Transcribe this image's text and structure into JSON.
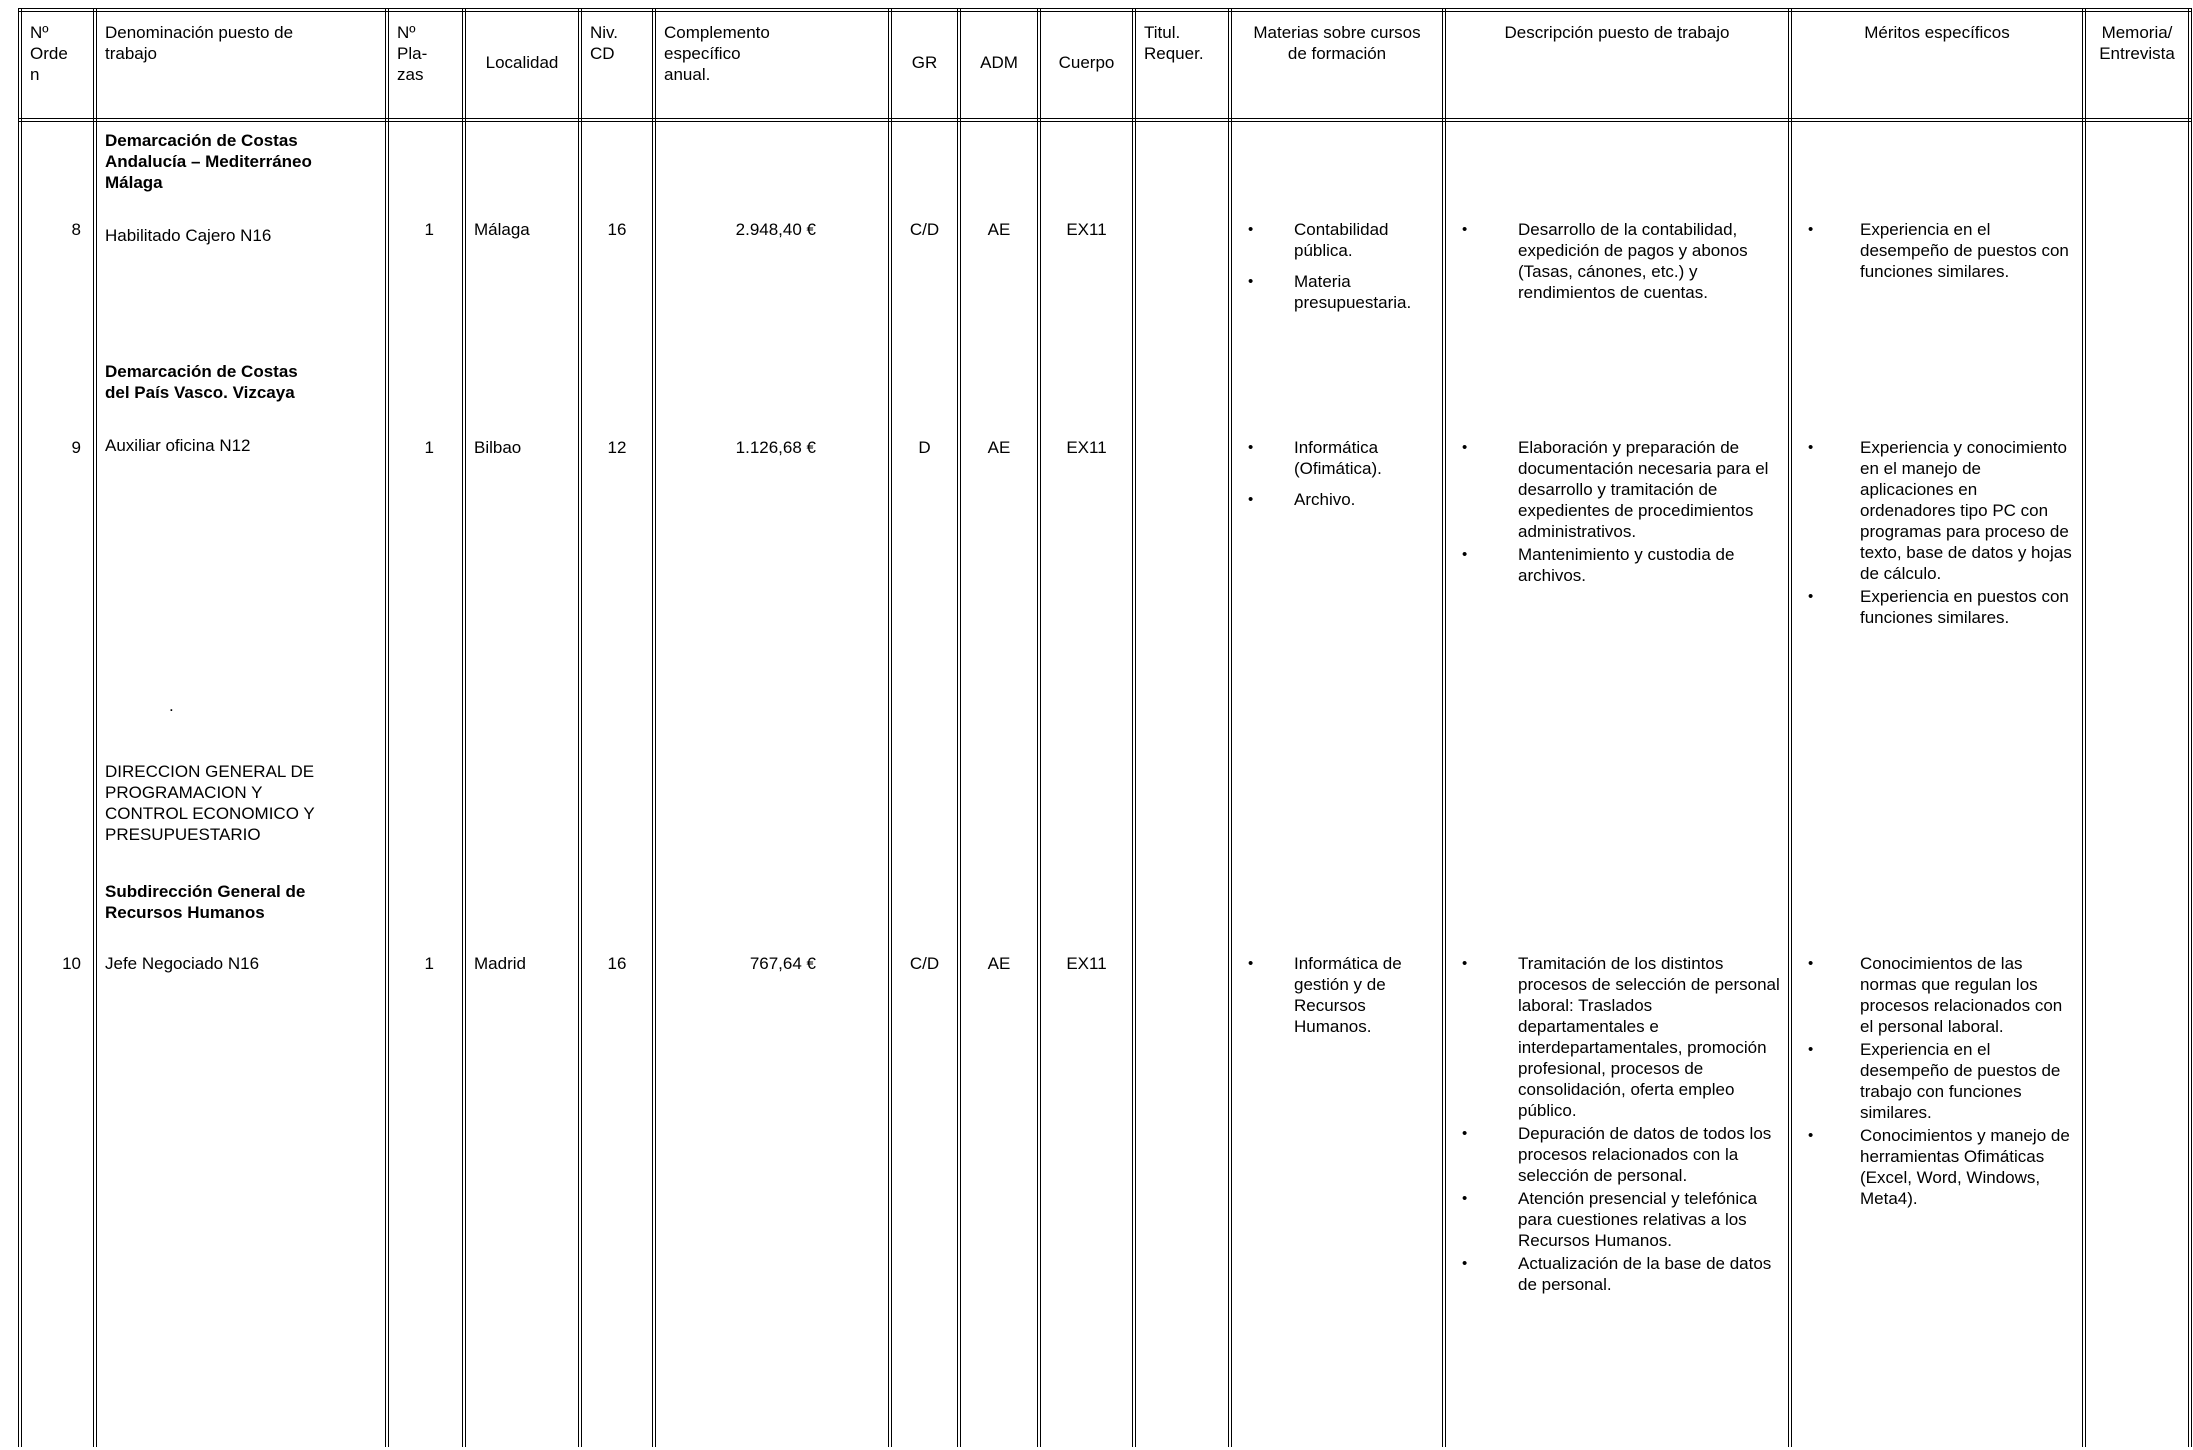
{
  "colors": {
    "ink": "#000000",
    "paper": "#ffffff"
  },
  "table": {
    "bullet": "•",
    "headers": {
      "orden": "Nº\nOrde\nn",
      "denominacion": "Denominación puesto de\ntrabajo",
      "plazas": "Nº\nPla-\nzas",
      "localidad": "Localidad",
      "niv_cd": "Niv.\nCD",
      "complemento": "Complemento\nespecífico\nanual.",
      "gr": "GR",
      "adm": "ADM",
      "cuerpo": "Cuerpo",
      "titul": "Titul.\nRequer.",
      "materias": "Materias sobre cursos\nde formación",
      "descripcion": "Descripción puesto de trabajo",
      "meritos": "Méritos específicos",
      "memoria": "Memoria/\nEntrevista"
    },
    "rows": [
      {
        "orden": "8",
        "section_heading": "Demarcación de Costas\nAndalucía – Mediterráneo\nMálaga",
        "puesto": "Habilitado Cajero N16",
        "plazas": "1",
        "localidad": "Málaga",
        "niv_cd": "16",
        "complemento": "2.948,40 €",
        "gr": "C/D",
        "adm": "AE",
        "cuerpo": "EX11",
        "materias": [
          "Contabilidad pública.",
          "Materia presupuestaria."
        ],
        "descripcion": [
          "Desarrollo de la contabilidad, expedición de pagos y abonos (Tasas, cánones, etc.) y rendimientos de cuentas."
        ],
        "meritos": [
          "Experiencia en el desempeño de puestos con funciones similares."
        ]
      },
      {
        "orden": "9",
        "section_heading": "Demarcación de Costas\ndel País Vasco. Vizcaya",
        "puesto": "Auxiliar oficina N12",
        "plazas": "1",
        "localidad": "Bilbao",
        "niv_cd": "12",
        "complemento": "1.126,68 €",
        "gr": "D",
        "adm": "AE",
        "cuerpo": "EX11",
        "materias": [
          "Informática (Ofimática).",
          "Archivo."
        ],
        "descripcion": [
          "Elaboración y preparación de documentación necesaria para el desarrollo y tramitación de expedientes de procedimientos administrativos.",
          "Mantenimiento y custodia de archivos."
        ],
        "meritos": [
          "Experiencia y conocimiento en el manejo de aplicaciones en ordenadores tipo PC con programas para proceso de texto, base de datos y hojas de cálculo.",
          "Experiencia en puestos con funciones similares."
        ],
        "artifact_dot": "."
      },
      {
        "orden": "10",
        "dg_heading": "DIRECCION GENERAL DE\nPROGRAMACION Y\nCONTROL ECONOMICO Y\nPRESUPUESTARIO",
        "section_heading": "Subdirección General de\nRecursos Humanos",
        "puesto": "Jefe Negociado N16",
        "plazas": "1",
        "localidad": "Madrid",
        "niv_cd": "16",
        "complemento": "767,64 €",
        "gr": "C/D",
        "adm": "AE",
        "cuerpo": "EX11",
        "materias": [
          "Informática de gestión y de Recursos Humanos."
        ],
        "descripcion": [
          "Tramitación de los distintos procesos de selección de personal laboral: Traslados departamentales e interdepartamentales, promoción profesional, procesos de consolidación, oferta empleo público.",
          "Depuración de datos de todos los procesos relacionados con la selección de personal.",
          "Atención presencial y telefónica para cuestiones relativas a los Recursos Humanos.",
          "Actualización de la base de datos de personal."
        ],
        "meritos": [
          "Conocimientos de las normas que regulan los procesos relacionados con el personal laboral.",
          "Experiencia en el desempeño de puestos de trabajo con funciones similares.",
          "Conocimientos y manejo de herramientas Ofimáticas (Excel, Word, Windows, Meta4)."
        ]
      }
    ]
  }
}
